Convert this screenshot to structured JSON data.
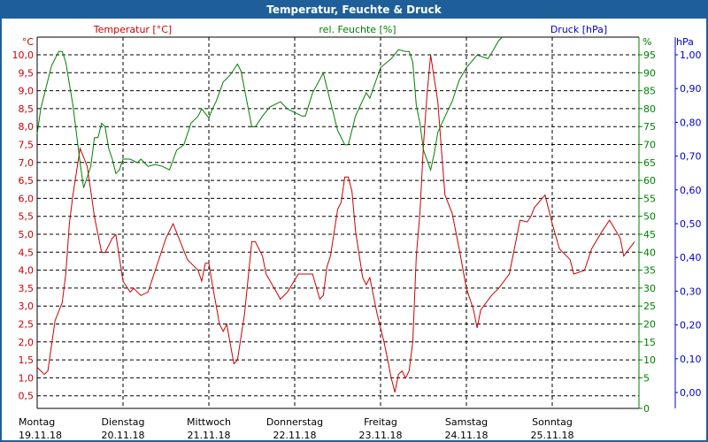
{
  "title": "Temperatur, Feuchte & Druck",
  "colors": {
    "temperature": "#cc0000",
    "humidity": "#008000",
    "pressure": "#0000cc",
    "titlebar": "#1f5f99"
  },
  "chart_data": {
    "type": "line",
    "title": "Temperatur, Feuchte & Druck",
    "grid": true,
    "x_ticks": [
      {
        "day": "Montag",
        "date": "19.11.18"
      },
      {
        "day": "Dienstag",
        "date": "20.11.18"
      },
      {
        "day": "Mittwoch",
        "date": "21.11.18"
      },
      {
        "day": "Donnerstag",
        "date": "22.11.18"
      },
      {
        "day": "Freitag",
        "date": "23.11.18"
      },
      {
        "day": "Samstag",
        "date": "24.11.18"
      },
      {
        "day": "Sonntag",
        "date": "25.11.18"
      }
    ],
    "xlim": [
      "19.11.18 00:00",
      "26.11.18 00:00"
    ],
    "axes": {
      "temperature": {
        "label": "Temperatur [°C]",
        "unit": "°C",
        "ylim": [
          0.5,
          10.0
        ],
        "ticks": [
          "10,0",
          "9,5",
          "9,0",
          "8,5",
          "8,0",
          "7,5",
          "7,0",
          "6,5",
          "6,0",
          "5,5",
          "5,0",
          "4,5",
          "4,0",
          "3,5",
          "3,0",
          "2,5",
          "2,0",
          "1,5",
          "1,0",
          "0,5"
        ]
      },
      "humidity": {
        "label": "rel. Feuchte [%]",
        "unit": "%",
        "ylim": [
          0,
          95
        ],
        "ticks": [
          "95",
          "90",
          "85",
          "80",
          "75",
          "70",
          "65",
          "60",
          "55",
          "50",
          "45",
          "40",
          "35",
          "30",
          "25",
          "20",
          "15",
          "10",
          "5",
          "0"
        ]
      },
      "pressure": {
        "label": "Druck [hPa]",
        "unit": "hPa",
        "ylim": [
          0.0,
          1.0
        ],
        "ticks": [
          "1,00",
          "0,90",
          "0,80",
          "0,70",
          "0,60",
          "0,50",
          "0,40",
          "0,30",
          "0,20",
          "0,10",
          "0,00"
        ]
      }
    },
    "series": [
      {
        "name": "Temperatur [°C]",
        "axis": "temperature",
        "color": "#cc0000",
        "points": [
          [
            "19.11.18 00:00",
            1.3
          ],
          [
            "19.11.18 02:00",
            1.1
          ],
          [
            "19.11.18 03:00",
            1.2
          ],
          [
            "19.11.18 05:00",
            2.6
          ],
          [
            "19.11.18 07:00",
            3.1
          ],
          [
            "19.11.18 08:00",
            3.9
          ],
          [
            "19.11.18 09:00",
            5.3
          ],
          [
            "19.11.18 10:00",
            6.1
          ],
          [
            "19.11.18 12:00",
            7.4
          ],
          [
            "19.11.18 14:00",
            6.9
          ],
          [
            "19.11.18 16:00",
            5.5
          ],
          [
            "19.11.18 18:00",
            4.5
          ],
          [
            "19.11.18 19:00",
            4.5
          ],
          [
            "19.11.18 21:00",
            4.9
          ],
          [
            "19.11.18 22:00",
            5.0
          ],
          [
            "20.11.18 00:00",
            3.7
          ],
          [
            "20.11.18 02:00",
            3.4
          ],
          [
            "20.11.18 03:00",
            3.5
          ],
          [
            "20.11.18 05:00",
            3.3
          ],
          [
            "20.11.18 07:00",
            3.4
          ],
          [
            "20.11.18 09:00",
            4.0
          ],
          [
            "20.11.18 12:00",
            4.9
          ],
          [
            "20.11.18 14:00",
            5.3
          ],
          [
            "20.11.18 16:00",
            4.8
          ],
          [
            "20.11.18 18:00",
            4.3
          ],
          [
            "20.11.18 21:00",
            4.0
          ],
          [
            "20.11.18 22:00",
            3.7
          ],
          [
            "20.11.18 23:00",
            4.2
          ],
          [
            "21.11.18 00:00",
            4.2
          ],
          [
            "21.11.18 01:00",
            3.6
          ],
          [
            "21.11.18 03:00",
            2.5
          ],
          [
            "21.11.18 04:00",
            2.3
          ],
          [
            "21.11.18 05:00",
            2.5
          ],
          [
            "21.11.18 07:00",
            1.4
          ],
          [
            "21.11.18 08:00",
            1.5
          ],
          [
            "21.11.18 10:00",
            2.8
          ],
          [
            "21.11.18 12:00",
            4.8
          ],
          [
            "21.11.18 13:00",
            4.8
          ],
          [
            "21.11.18 15:00",
            4.4
          ],
          [
            "21.11.18 16:00",
            3.9
          ],
          [
            "21.11.18 20:00",
            3.2
          ],
          [
            "21.11.18 22:00",
            3.4
          ],
          [
            "22.11.18 01:00",
            3.9
          ],
          [
            "22.11.18 04:00",
            3.9
          ],
          [
            "22.11.18 05:00",
            3.9
          ],
          [
            "22.11.18 07:00",
            3.2
          ],
          [
            "22.11.18 08:00",
            3.3
          ],
          [
            "22.11.18 09:00",
            4.1
          ],
          [
            "22.11.18 10:00",
            4.4
          ],
          [
            "22.11.18 12:00",
            5.7
          ],
          [
            "22.11.18 13:00",
            5.9
          ],
          [
            "22.11.18 14:00",
            6.6
          ],
          [
            "22.11.18 15:00",
            6.6
          ],
          [
            "22.11.18 16:00",
            6.2
          ],
          [
            "22.11.18 17:00",
            5.1
          ],
          [
            "22.11.18 19:00",
            3.8
          ],
          [
            "22.11.18 20:00",
            3.6
          ],
          [
            "22.11.18 21:00",
            3.8
          ],
          [
            "22.11.18 23:00",
            2.8
          ],
          [
            "23.11.18 01:00",
            2.0
          ],
          [
            "23.11.18 02:00",
            1.5
          ],
          [
            "23.11.18 03:00",
            1.0
          ],
          [
            "23.11.18 04:00",
            0.6
          ],
          [
            "23.11.18 05:00",
            1.1
          ],
          [
            "23.11.18 06:00",
            1.2
          ],
          [
            "23.11.18 07:00",
            1.0
          ],
          [
            "23.11.18 08:00",
            1.2
          ],
          [
            "23.11.18 09:00",
            2.0
          ],
          [
            "23.11.18 10:00",
            4.4
          ],
          [
            "23.11.18 11:00",
            5.6
          ],
          [
            "23.11.18 12:00",
            7.5
          ],
          [
            "23.11.18 13:00",
            8.9
          ],
          [
            "23.11.18 14:00",
            10.0
          ],
          [
            "23.11.18 16:00",
            8.7
          ],
          [
            "23.11.18 17:00",
            7.4
          ],
          [
            "23.11.18 18:00",
            6.1
          ],
          [
            "23.11.18 20:00",
            5.6
          ],
          [
            "23.11.18 22:00",
            4.6
          ],
          [
            "24.11.18 00:00",
            3.5
          ],
          [
            "24.11.18 02:00",
            2.9
          ],
          [
            "24.11.18 03:00",
            2.4
          ],
          [
            "24.11.18 04:00",
            2.9
          ],
          [
            "24.11.18 07:00",
            3.3
          ],
          [
            "24.11.18 08:00",
            3.4
          ],
          [
            "24.11.18 09:00",
            3.5
          ],
          [
            "24.11.18 12:00",
            3.9
          ],
          [
            "24.11.18 14:00",
            4.9
          ],
          [
            "24.11.18 15:00",
            5.4
          ],
          [
            "24.11.18 17:00",
            5.35
          ],
          [
            "24.11.18 18:00",
            5.5
          ],
          [
            "24.11.18 19:00",
            5.75
          ],
          [
            "24.11.18 22:00",
            6.1
          ],
          [
            "25.11.18 00:00",
            5.3
          ],
          [
            "25.11.18 02:00",
            4.6
          ],
          [
            "25.11.18 05:00",
            4.3
          ],
          [
            "25.11.18 06:00",
            3.9
          ],
          [
            "25.11.18 09:00",
            4.0
          ],
          [
            "25.11.18 11:00",
            4.6
          ],
          [
            "25.11.18 14:00",
            5.1
          ],
          [
            "25.11.18 16:00",
            5.4
          ],
          [
            "25.11.18 19:00",
            4.9
          ],
          [
            "25.11.18 20:00",
            4.4
          ],
          [
            "25.11.18 23:00",
            4.8
          ]
        ]
      },
      {
        "name": "rel. Feuchte [%]",
        "axis": "humidity",
        "color": "#008000",
        "points": [
          [
            "19.11.18 00:00",
            78
          ],
          [
            "19.11.18 01:00",
            85
          ],
          [
            "19.11.18 03:00",
            93
          ],
          [
            "19.11.18 04:00",
            97
          ],
          [
            "19.11.18 06:00",
            101
          ],
          [
            "19.11.18 07:00",
            101
          ],
          [
            "19.11.18 08:00",
            98
          ],
          [
            "19.11.18 10:00",
            86
          ],
          [
            "19.11.18 12:00",
            70
          ],
          [
            "19.11.18 13:00",
            63
          ],
          [
            "19.11.18 15:00",
            69
          ],
          [
            "19.11.18 16:00",
            77
          ],
          [
            "19.11.18 17:00",
            77
          ],
          [
            "19.11.18 18:00",
            81
          ],
          [
            "19.11.18 19:00",
            80
          ],
          [
            "19.11.18 20:00",
            74
          ],
          [
            "19.11.18 21:00",
            71
          ],
          [
            "19.11.18 22:00",
            67
          ],
          [
            "19.11.18 23:00",
            68
          ],
          [
            "20.11.18 00:00",
            71
          ],
          [
            "20.11.18 02:00",
            71
          ],
          [
            "20.11.18 04:00",
            70
          ],
          [
            "20.11.18 05:00",
            71
          ],
          [
            "20.11.18 07:00",
            69
          ],
          [
            "20.11.18 09:00",
            69.5
          ],
          [
            "20.11.18 11:00",
            69
          ],
          [
            "20.11.18 13:00",
            68
          ],
          [
            "20.11.18 15:00",
            73.5
          ],
          [
            "20.11.18 17:00",
            75
          ],
          [
            "20.11.18 19:00",
            81
          ],
          [
            "20.11.18 21:00",
            83
          ],
          [
            "20.11.18 22:00",
            85
          ],
          [
            "21.11.18 00:00",
            82.5
          ],
          [
            "21.11.18 01:00",
            85
          ],
          [
            "21.11.18 02:00",
            87
          ],
          [
            "21.11.18 04:00",
            92.5
          ],
          [
            "21.11.18 06:00",
            94.5
          ],
          [
            "21.11.18 08:00",
            97.5
          ],
          [
            "21.11.18 09:00",
            95.5
          ],
          [
            "21.11.18 12:00",
            80
          ],
          [
            "21.11.18 13:00",
            80
          ],
          [
            "21.11.18 15:00",
            83
          ],
          [
            "21.11.18 17:00",
            85.5
          ],
          [
            "21.11.18 20:00",
            87
          ],
          [
            "21.11.18 22:00",
            85
          ],
          [
            "22.11.18 02:00",
            83
          ],
          [
            "22.11.18 03:00",
            83
          ],
          [
            "22.11.18 05:00",
            89.5
          ],
          [
            "22.11.18 08:00",
            95
          ],
          [
            "22.11.18 10:00",
            87
          ],
          [
            "22.11.18 12:00",
            79
          ],
          [
            "22.11.18 14:00",
            75
          ],
          [
            "22.11.18 15:00",
            75
          ],
          [
            "22.11.18 17:00",
            83
          ],
          [
            "22.11.18 20:00",
            89.5
          ],
          [
            "22.11.18 21:00",
            88
          ],
          [
            "23.11.18 00:00",
            96.5
          ],
          [
            "23.11.18 03:00",
            99
          ],
          [
            "23.11.18 05:00",
            101.5
          ],
          [
            "23.11.18 07:00",
            101
          ],
          [
            "23.11.18 08:00",
            101
          ],
          [
            "23.11.18 09:00",
            98
          ],
          [
            "23.11.18 10:00",
            86
          ],
          [
            "23.11.18 11:00",
            81
          ],
          [
            "23.11.18 12:00",
            73.5
          ],
          [
            "23.11.18 14:00",
            68
          ],
          [
            "23.11.18 15:00",
            72.5
          ],
          [
            "23.11.18 16:00",
            78.5
          ],
          [
            "23.11.18 19:00",
            85
          ],
          [
            "23.11.18 20:00",
            87
          ],
          [
            "23.11.18 22:00",
            93
          ],
          [
            "24.11.18 00:00",
            96.5
          ],
          [
            "24.11.18 03:00",
            100
          ],
          [
            "24.11.18 06:00",
            99
          ],
          [
            "24.11.18 07:00",
            100.5
          ],
          [
            "24.11.18 09:00",
            104
          ],
          [
            "24.11.18 10:00",
            105
          ]
        ]
      },
      {
        "name": "Druck [hPa]",
        "axis": "pressure",
        "color": "#0000cc",
        "points": []
      }
    ]
  }
}
